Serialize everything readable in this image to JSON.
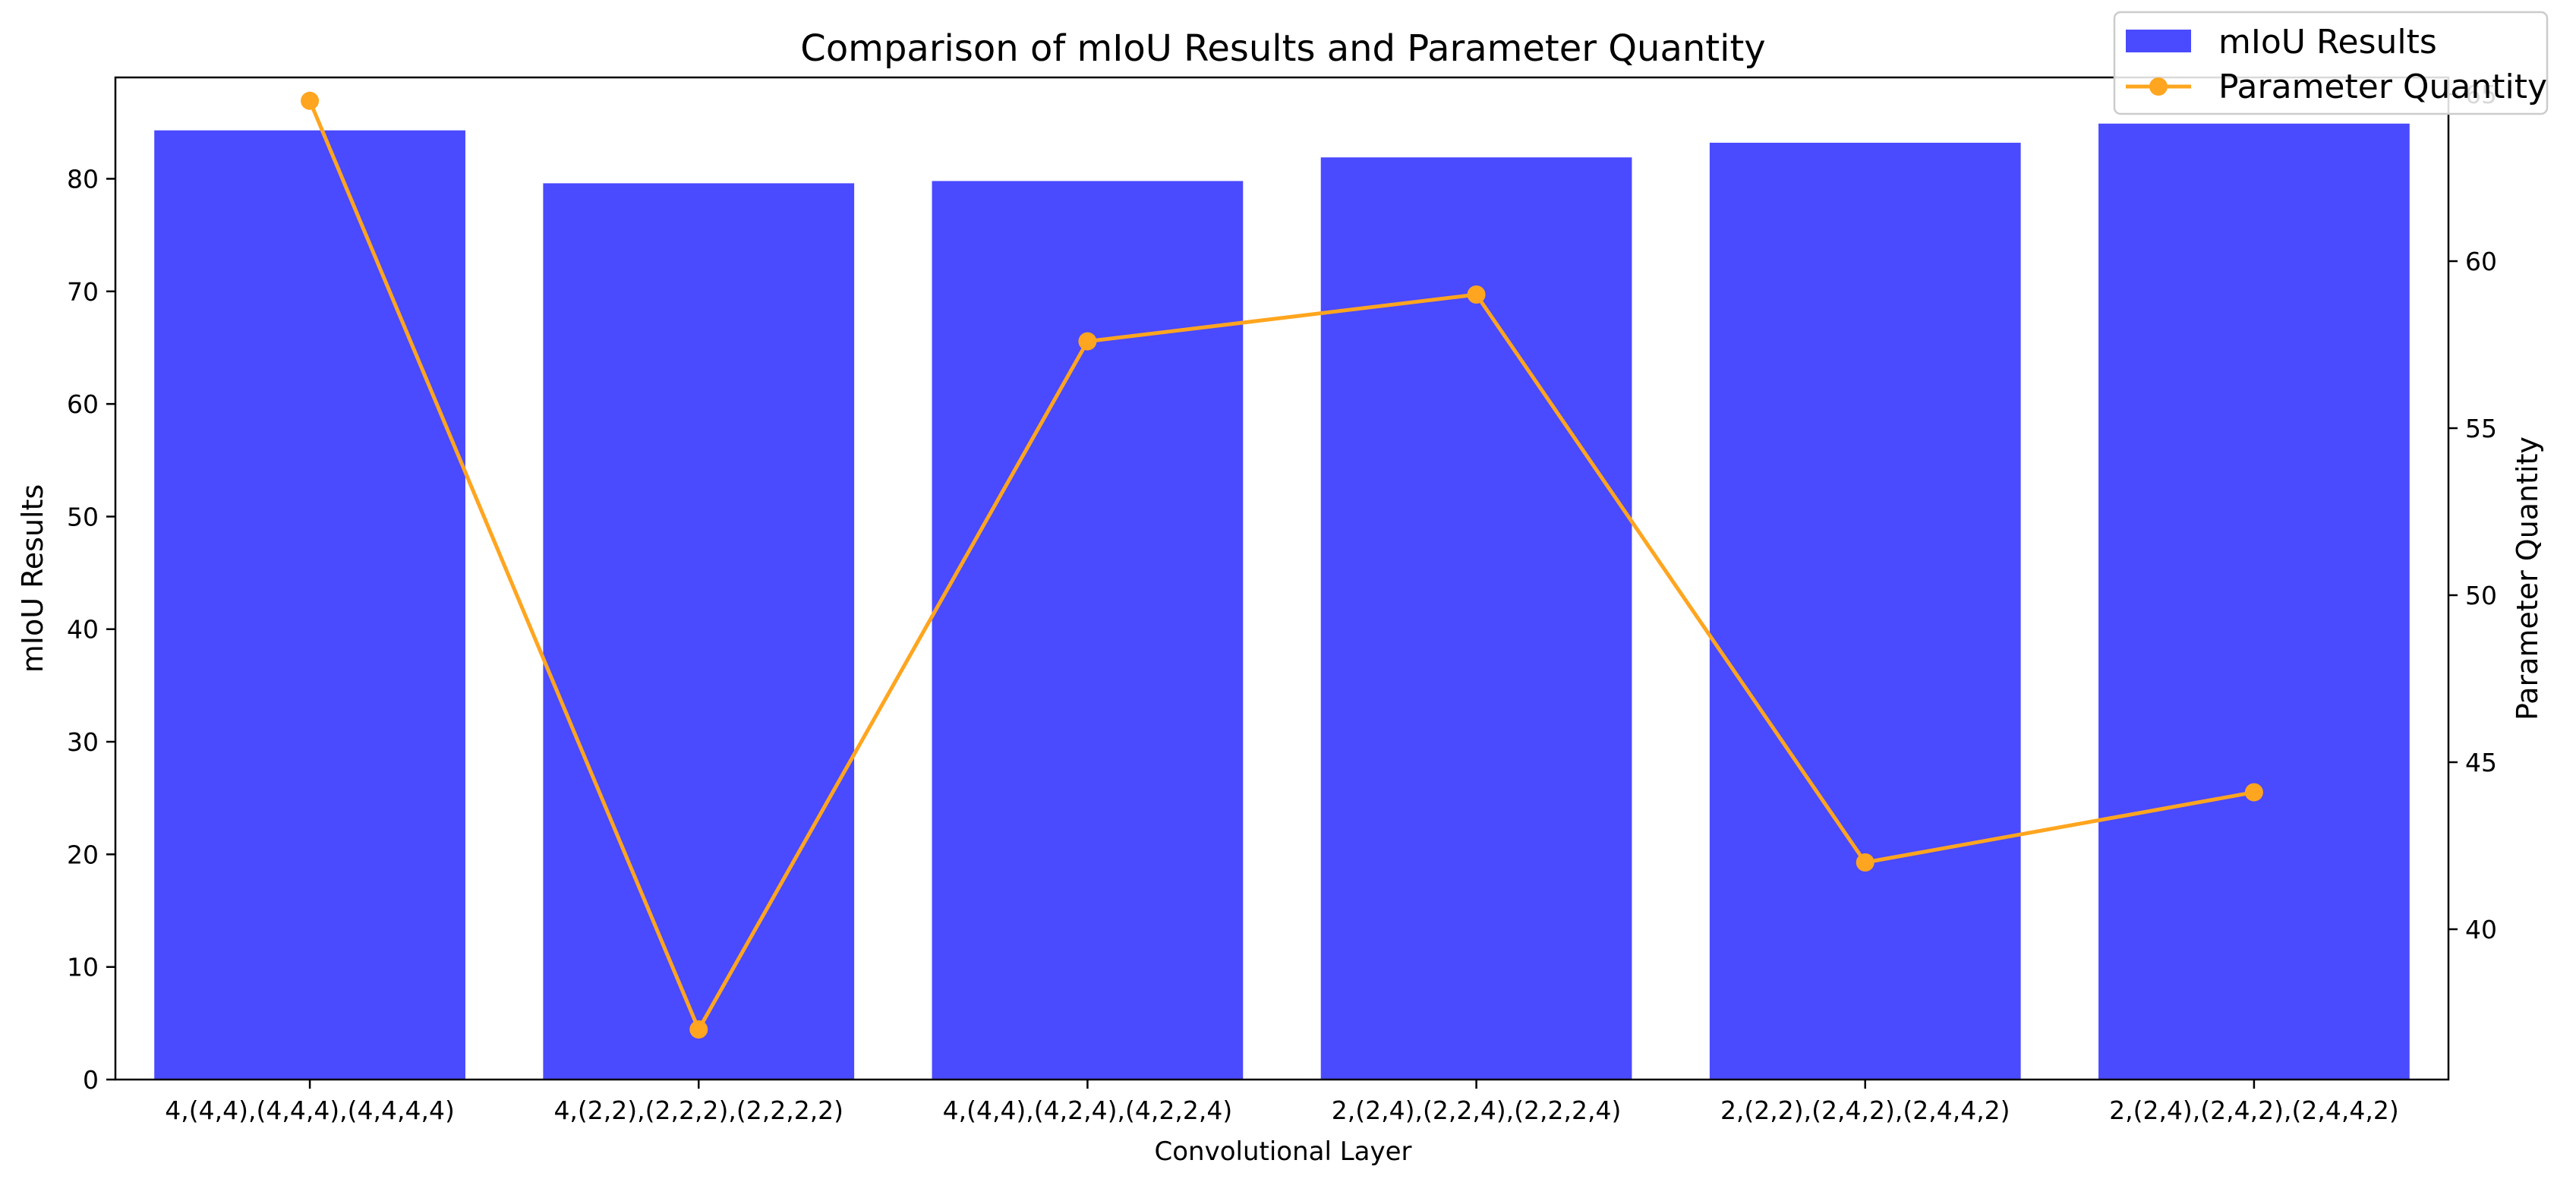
{
  "chart_data": {
    "type": "bar",
    "title": "Comparison of mIoU Results and Parameter Quantity",
    "xlabel": "Convolutional Layer",
    "ylabel": "mIoU Results",
    "y2label": "Parameter Quantity",
    "categories": [
      "4,(4,4),(4,4,4),(4,4,4,4)",
      "4,(2,2),(2,2,2),(2,2,2,2)",
      "4,(4,4),(4,2,4),(4,2,2,4)",
      "2,(2,4),(2,2,4),(2,2,2,4)",
      "2,(2,2),(2,4,2),(2,4,4,2)",
      "2,(2,4),(2,4,2),(2,4,4,2)"
    ],
    "series": [
      {
        "name": "mIoU Results",
        "type": "bar",
        "axis": "left",
        "color": "#4a4aff",
        "values": [
          84.3,
          79.6,
          79.8,
          81.9,
          83.2,
          84.9
        ]
      },
      {
        "name": "Parameter Quantity",
        "type": "line",
        "axis": "right",
        "color": "#ffa51f",
        "marker": "circle",
        "values": [
          64.8,
          37.0,
          57.6,
          59.0,
          42.0,
          44.1
        ]
      }
    ],
    "ylim": [
      0,
      89
    ],
    "yticks": [
      0,
      10,
      20,
      30,
      40,
      50,
      60,
      70,
      80
    ],
    "y2lim": [
      35.5,
      65.5
    ],
    "y2ticks": [
      40,
      45,
      50,
      55,
      60,
      65
    ],
    "grid": false,
    "legend_position": "top-right"
  }
}
